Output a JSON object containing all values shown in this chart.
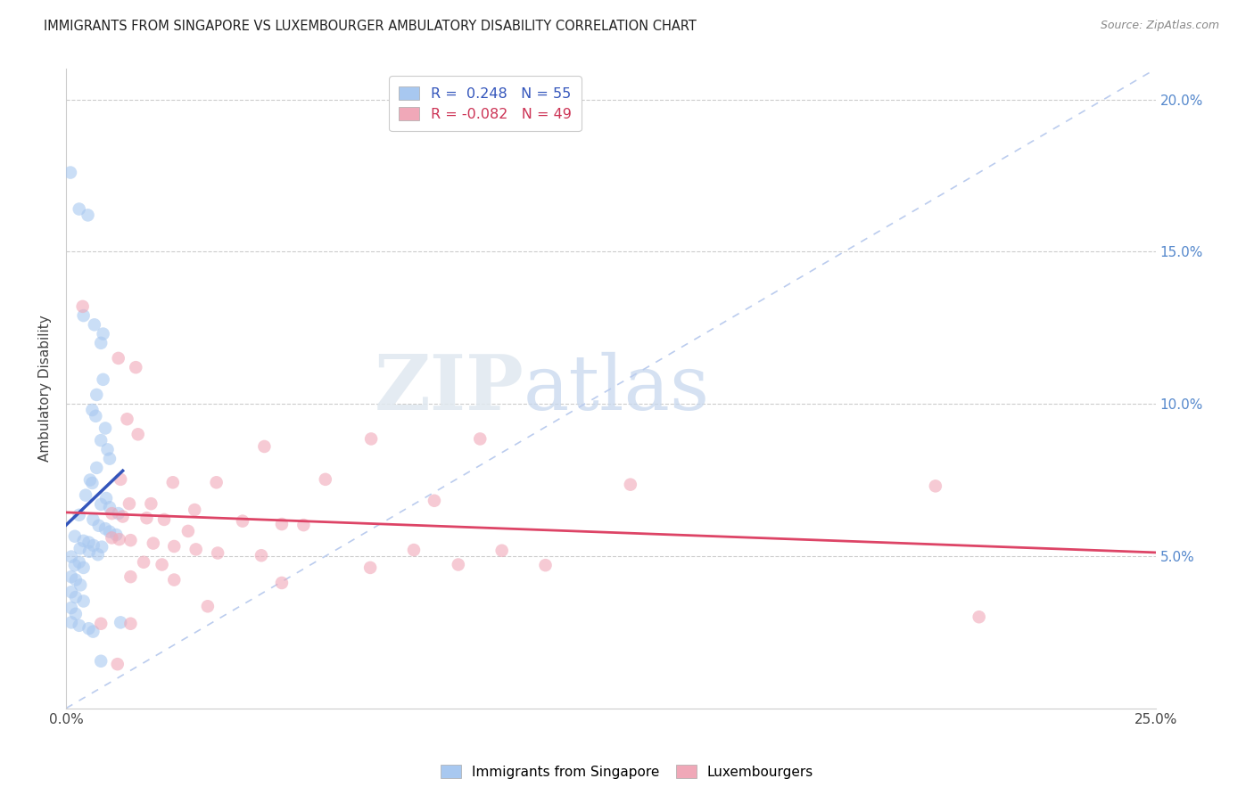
{
  "title": "IMMIGRANTS FROM SINGAPORE VS LUXEMBOURGER AMBULATORY DISABILITY CORRELATION CHART",
  "source": "Source: ZipAtlas.com",
  "ylabel": "Ambulatory Disability",
  "xlim": [
    0.0,
    0.25
  ],
  "ylim": [
    0.0,
    0.21
  ],
  "xtick_positions": [
    0.0,
    0.05,
    0.1,
    0.15,
    0.2,
    0.25
  ],
  "xtick_labels": [
    "0.0%",
    "",
    "",
    "",
    "",
    "25.0%"
  ],
  "ytick_positions": [
    0.05,
    0.1,
    0.15,
    0.2
  ],
  "ytick_labels_right": [
    "5.0%",
    "10.0%",
    "15.0%",
    "20.0%"
  ],
  "legend1_label": "R =  0.248   N = 55",
  "legend2_label": "R = -0.082   N = 49",
  "watermark_ZIP": "ZIP",
  "watermark_atlas": "atlas",
  "blue_scatter_color": "#a8c8f0",
  "pink_scatter_color": "#f0a8b8",
  "blue_line_color": "#3355bb",
  "pink_line_color": "#dd4466",
  "dash_line_color": "#bbccee",
  "blue_points": [
    [
      0.001,
      0.176
    ],
    [
      0.003,
      0.164
    ],
    [
      0.005,
      0.162
    ],
    [
      0.004,
      0.129
    ],
    [
      0.0065,
      0.126
    ],
    [
      0.0085,
      0.123
    ],
    [
      0.008,
      0.12
    ],
    [
      0.0085,
      0.108
    ],
    [
      0.007,
      0.103
    ],
    [
      0.006,
      0.098
    ],
    [
      0.0068,
      0.096
    ],
    [
      0.009,
      0.092
    ],
    [
      0.008,
      0.088
    ],
    [
      0.0095,
      0.085
    ],
    [
      0.01,
      0.082
    ],
    [
      0.007,
      0.079
    ],
    [
      0.0055,
      0.075
    ],
    [
      0.006,
      0.074
    ],
    [
      0.0045,
      0.07
    ],
    [
      0.0092,
      0.069
    ],
    [
      0.008,
      0.067
    ],
    [
      0.01,
      0.066
    ],
    [
      0.012,
      0.064
    ],
    [
      0.003,
      0.0635
    ],
    [
      0.0062,
      0.062
    ],
    [
      0.0075,
      0.06
    ],
    [
      0.009,
      0.059
    ],
    [
      0.01,
      0.058
    ],
    [
      0.0115,
      0.057
    ],
    [
      0.002,
      0.0565
    ],
    [
      0.004,
      0.055
    ],
    [
      0.0052,
      0.0545
    ],
    [
      0.0063,
      0.0535
    ],
    [
      0.0082,
      0.053
    ],
    [
      0.0032,
      0.0525
    ],
    [
      0.0053,
      0.0515
    ],
    [
      0.0073,
      0.0505
    ],
    [
      0.0012,
      0.0498
    ],
    [
      0.003,
      0.048
    ],
    [
      0.002,
      0.047
    ],
    [
      0.004,
      0.0462
    ],
    [
      0.0012,
      0.0432
    ],
    [
      0.0022,
      0.0422
    ],
    [
      0.0033,
      0.0405
    ],
    [
      0.0012,
      0.0382
    ],
    [
      0.0022,
      0.0365
    ],
    [
      0.004,
      0.0352
    ],
    [
      0.0012,
      0.033
    ],
    [
      0.0022,
      0.031
    ],
    [
      0.0012,
      0.0282
    ],
    [
      0.003,
      0.0272
    ],
    [
      0.0052,
      0.0262
    ],
    [
      0.0062,
      0.0252
    ],
    [
      0.0125,
      0.0282
    ],
    [
      0.008,
      0.0155
    ]
  ],
  "pink_points": [
    [
      0.0038,
      0.132
    ],
    [
      0.012,
      0.115
    ],
    [
      0.016,
      0.112
    ],
    [
      0.014,
      0.095
    ],
    [
      0.0165,
      0.09
    ],
    [
      0.07,
      0.0885
    ],
    [
      0.095,
      0.0885
    ],
    [
      0.0455,
      0.086
    ],
    [
      0.0125,
      0.0752
    ],
    [
      0.0595,
      0.0752
    ],
    [
      0.0245,
      0.0742
    ],
    [
      0.0345,
      0.0742
    ],
    [
      0.1295,
      0.0735
    ],
    [
      0.1995,
      0.073
    ],
    [
      0.0845,
      0.0682
    ],
    [
      0.0145,
      0.0672
    ],
    [
      0.0195,
      0.0672
    ],
    [
      0.0295,
      0.0652
    ],
    [
      0.0105,
      0.064
    ],
    [
      0.013,
      0.063
    ],
    [
      0.0185,
      0.0625
    ],
    [
      0.0225,
      0.062
    ],
    [
      0.0405,
      0.0615
    ],
    [
      0.0495,
      0.0605
    ],
    [
      0.0545,
      0.0602
    ],
    [
      0.028,
      0.0582
    ],
    [
      0.0105,
      0.056
    ],
    [
      0.0122,
      0.0555
    ],
    [
      0.0148,
      0.0552
    ],
    [
      0.02,
      0.0542
    ],
    [
      0.0248,
      0.0532
    ],
    [
      0.0298,
      0.0522
    ],
    [
      0.0798,
      0.052
    ],
    [
      0.1,
      0.0518
    ],
    [
      0.0348,
      0.051
    ],
    [
      0.0448,
      0.0502
    ],
    [
      0.0178,
      0.048
    ],
    [
      0.022,
      0.0472
    ],
    [
      0.09,
      0.0472
    ],
    [
      0.11,
      0.047
    ],
    [
      0.0698,
      0.0462
    ],
    [
      0.0148,
      0.0432
    ],
    [
      0.0248,
      0.0422
    ],
    [
      0.0495,
      0.0412
    ],
    [
      0.0325,
      0.0335
    ],
    [
      0.2095,
      0.03
    ],
    [
      0.008,
      0.0278
    ],
    [
      0.0148,
      0.0278
    ],
    [
      0.0118,
      0.0145
    ]
  ],
  "blue_line_x": [
    0.0,
    0.013
  ],
  "pink_line_x": [
    0.0,
    0.25
  ],
  "dash_line": [
    [
      0.0,
      0.0
    ],
    [
      0.25,
      0.21
    ]
  ]
}
